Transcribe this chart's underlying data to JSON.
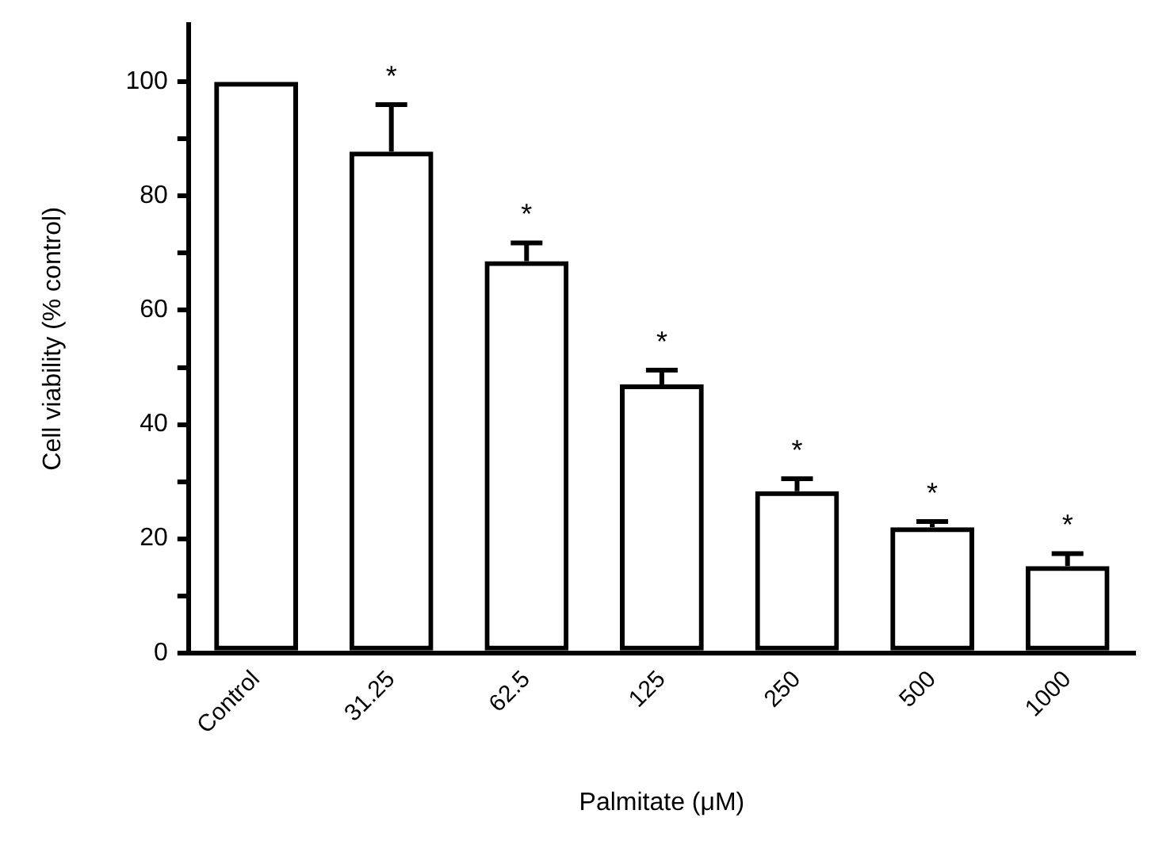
{
  "chart_data": {
    "type": "bar",
    "xlabel": "Palmitate (μM)",
    "ylabel": "Cell viability (% control)",
    "categories": [
      "Control",
      "31.25",
      "62.5",
      "125",
      "250",
      "500",
      "1000"
    ],
    "values": [
      100,
      87.8,
      68.6,
      47,
      28.3,
      22,
      15.2
    ],
    "errors": [
      null,
      [
        87.8,
        96
      ],
      [
        68.6,
        71.8
      ],
      [
        47,
        49.5
      ],
      [
        28.3,
        30.5
      ],
      [
        22,
        23
      ],
      [
        15.2,
        17.4
      ]
    ],
    "color": "#000000",
    "ylim": [
      0,
      110
    ],
    "yticks": [
      0,
      {
        "value": 10,
        "label": null
      },
      20,
      {
        "value": 30,
        "label": null
      },
      40,
      {
        "value": 50,
        "label": null
      },
      60,
      {
        "value": 70,
        "label": null
      },
      80,
      {
        "value": 90,
        "label": null
      },
      100
    ],
    "grid": false,
    "legend": false,
    "annotations": [
      {
        "text": "*",
        "x": "31.25",
        "y": 96
      },
      {
        "text": "*",
        "x": "62.5",
        "y": 71.8
      },
      {
        "text": "*",
        "x": "125",
        "y": 49.5
      },
      {
        "text": "*",
        "x": "250",
        "y": 30.5
      },
      {
        "text": "*",
        "x": "500",
        "y": 23
      },
      {
        "text": "*",
        "x": "1000",
        "y": 17.4
      }
    ]
  }
}
